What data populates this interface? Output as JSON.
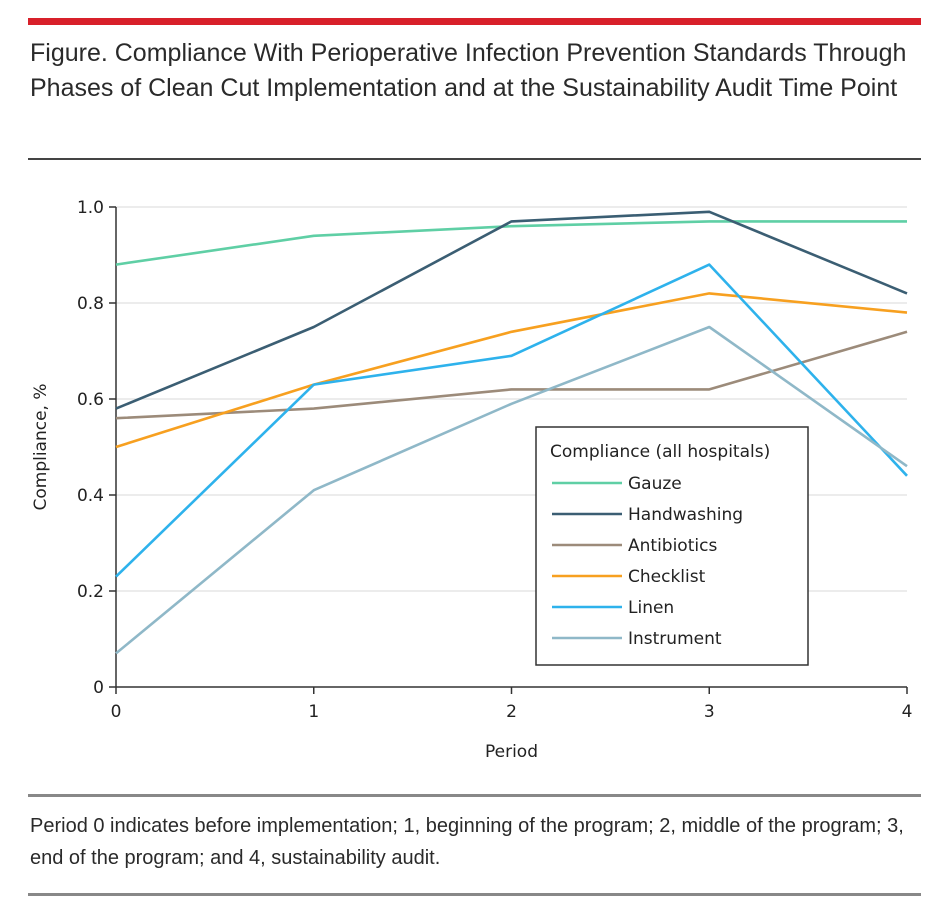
{
  "figure": {
    "title": "Figure. Compliance With Perioperative Infection Prevention Standards Through Phases of Clean Cut Implementation and at the Sustainability Audit Time Point",
    "caption": "Period 0 indicates before implementation; 1, beginning of the program; 2, middle of the program; 3, end of the program; and 4, sustainability audit."
  },
  "chart_data": {
    "type": "line",
    "x": [
      0,
      1,
      2,
      3,
      4
    ],
    "xlabel": "Period",
    "ylabel": "Compliance, %",
    "xlim": [
      0,
      4
    ],
    "ylim": [
      0,
      1.0
    ],
    "xticks": [
      "0",
      "1",
      "2",
      "3",
      "4"
    ],
    "yticks": [
      "0",
      "0.2",
      "0.4",
      "0.6",
      "0.8",
      "1.0"
    ],
    "grid": "horizontal",
    "legend": {
      "title": "Compliance (all hospitals)",
      "placement": "lower-right"
    },
    "series": [
      {
        "name": "Gauze",
        "color": "#5fcfa5",
        "values": [
          0.88,
          0.94,
          0.96,
          0.97,
          0.97
        ]
      },
      {
        "name": "Handwashing",
        "color": "#3b5e73",
        "values": [
          0.58,
          0.75,
          0.97,
          0.99,
          0.82
        ]
      },
      {
        "name": "Antibiotics",
        "color": "#9c8b7a",
        "values": [
          0.56,
          0.58,
          0.62,
          0.62,
          0.74
        ]
      },
      {
        "name": "Checklist",
        "color": "#f7a020",
        "values": [
          0.5,
          0.63,
          0.74,
          0.82,
          0.78
        ]
      },
      {
        "name": "Linen",
        "color": "#2eb2ec",
        "values": [
          0.23,
          0.63,
          0.69,
          0.88,
          0.44
        ]
      },
      {
        "name": "Instrument",
        "color": "#8fb8c8",
        "values": [
          0.07,
          0.41,
          0.59,
          0.75,
          0.46
        ]
      }
    ]
  }
}
